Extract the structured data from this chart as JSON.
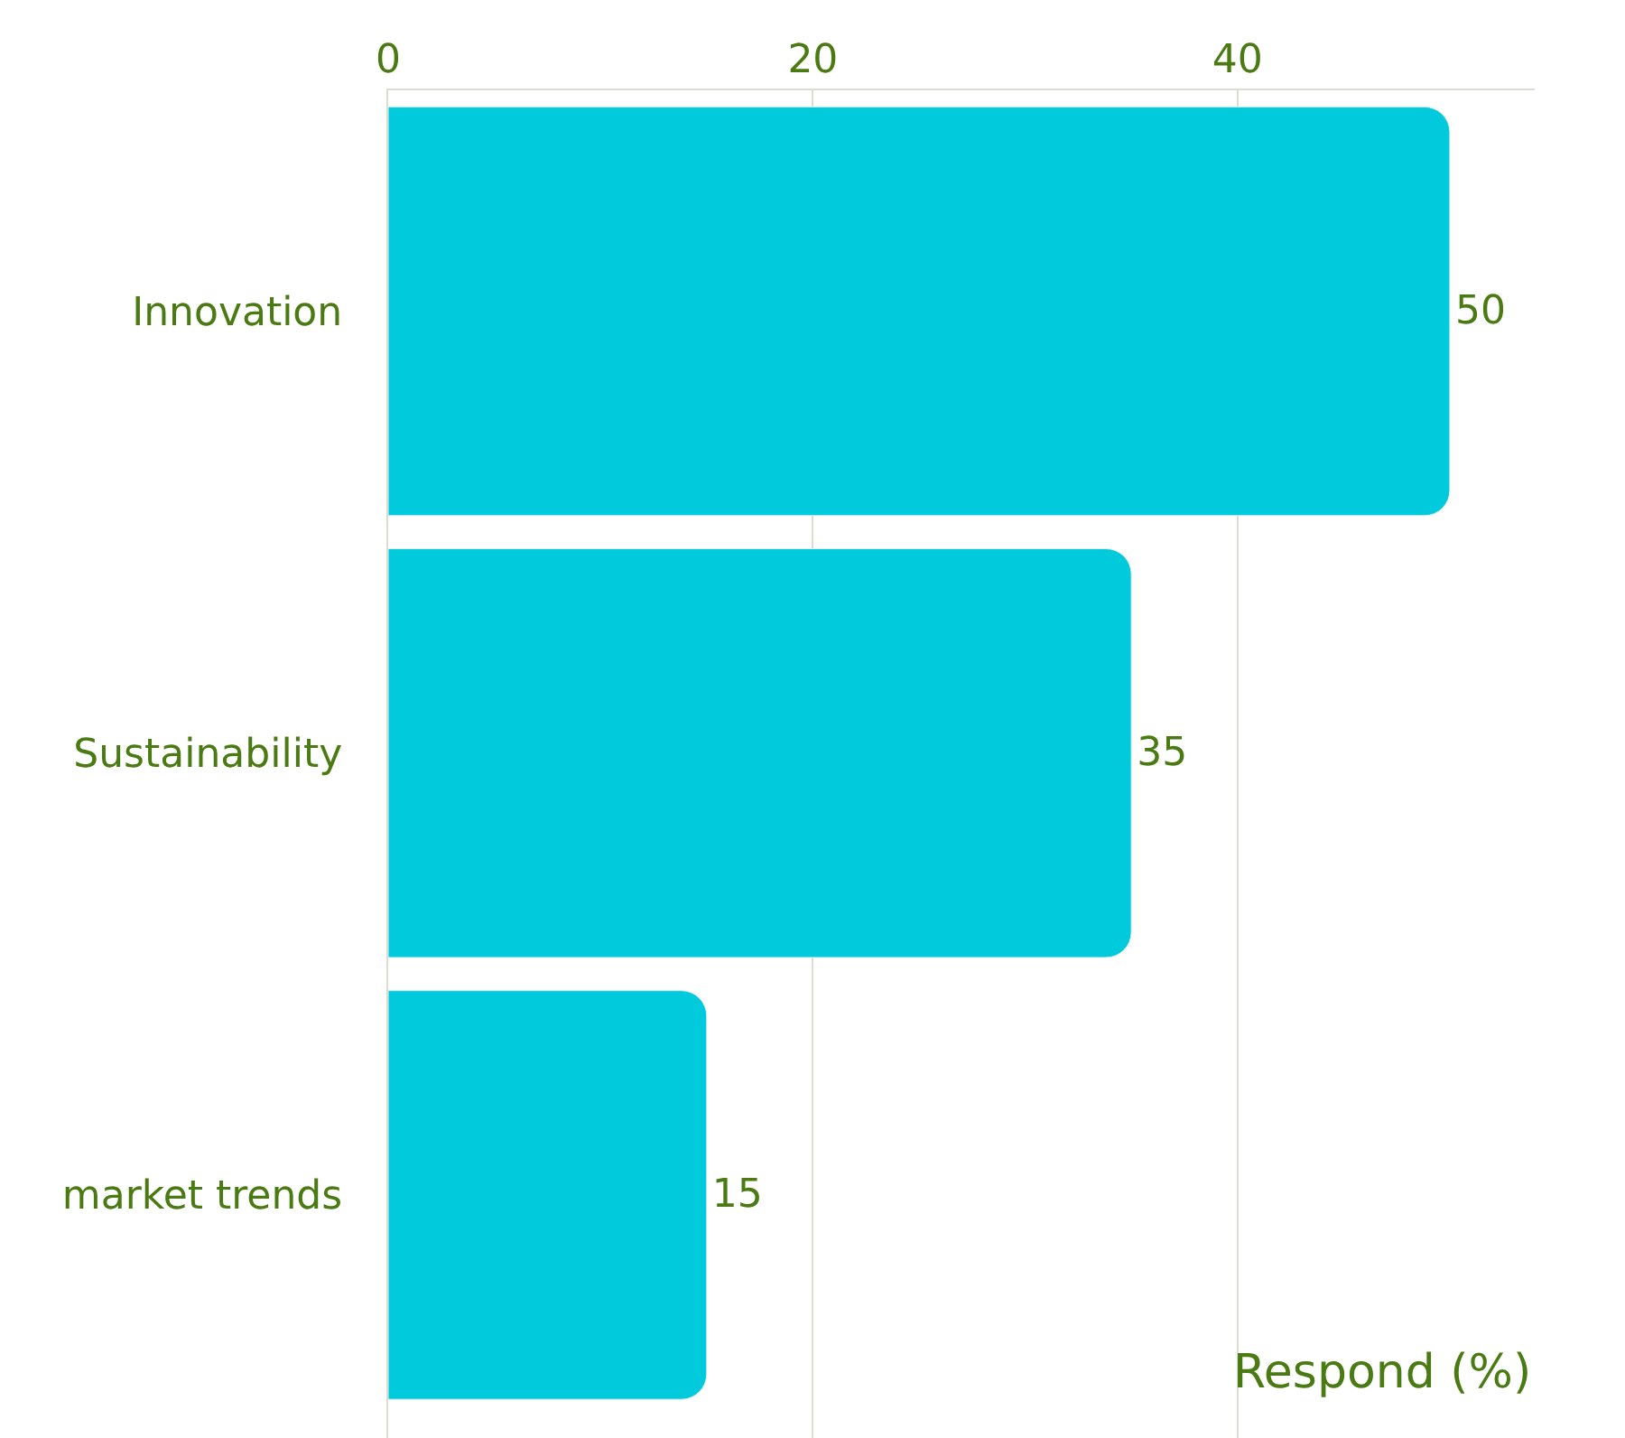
{
  "chart_data": {
    "type": "bar",
    "orientation": "horizontal",
    "xlabel": "Respond (%)",
    "categories": [
      "Innovation",
      "Sustainability",
      "market trends"
    ],
    "values": [
      50,
      35,
      15
    ],
    "color": "#00cadb",
    "xlim": [
      0,
      54
    ],
    "xticks": [
      0,
      20,
      40
    ],
    "grid": "x",
    "data_labels": true,
    "legend": false
  }
}
